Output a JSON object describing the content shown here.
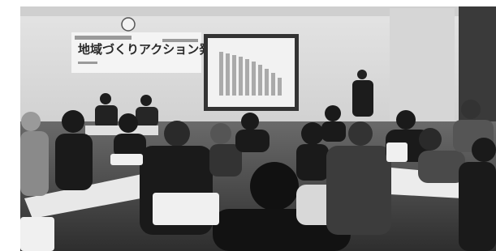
{
  "banner": {
    "title": "地域づくりアクション発表会"
  }
}
